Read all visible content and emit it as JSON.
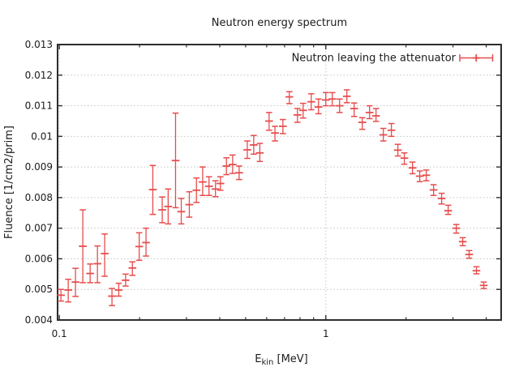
{
  "figure": {
    "background": "#ffffff",
    "colors": {
      "series": "#e74c4c",
      "border": "#2d2d2d",
      "grid": "#c4c4c4",
      "text": "#1b1b1b"
    }
  },
  "chart_data": {
    "type": "scatter",
    "title": "Neutron energy spectrum",
    "xlabel": "E_kin [MeV]",
    "xlabel_parts": {
      "main": "E",
      "sub": "kin",
      "unit": " [MeV]"
    },
    "ylabel": "Fluence [1/cm2/prim]",
    "xscale": "log",
    "yscale": "linear",
    "xlim": [
      0.0985,
      4.55
    ],
    "ylim": [
      0.004,
      0.013
    ],
    "grid": true,
    "legend": {
      "label": "Neutron leaving the attenuator",
      "position": "top-right"
    },
    "yticks": {
      "values": [
        0.004,
        0.005,
        0.006,
        0.007,
        0.008,
        0.009,
        0.01,
        0.011,
        0.012,
        0.013
      ],
      "labels": [
        "0.004",
        "0.005",
        "0.006",
        "0.007",
        "0.008",
        "0.009",
        "0.01",
        "0.011",
        "0.012",
        "0.013"
      ]
    },
    "xticks_major": {
      "values": [
        0.1,
        1
      ],
      "labels": [
        "0.1",
        "1"
      ]
    },
    "xticks_minor": [
      0.2,
      0.3,
      0.4,
      0.5,
      0.6,
      0.7,
      0.8,
      0.9,
      2,
      3,
      4
    ],
    "series": [
      {
        "name": "Neutron leaving the attenuator",
        "marker": "plus-errorbar",
        "color": "#e74c4c",
        "x": [
          0.1014,
          0.108,
          0.115,
          0.1225,
          0.1305,
          0.139,
          0.148,
          0.1576,
          0.1671,
          0.1773,
          0.188,
          0.1994,
          0.2115,
          0.2243,
          0.2433,
          0.2561,
          0.273,
          0.2868,
          0.3075,
          0.327,
          0.3451,
          0.3645,
          0.3855,
          0.4022,
          0.4237,
          0.447,
          0.4729,
          0.5074,
          0.5364,
          0.5654,
          0.6126,
          0.6444,
          0.6902,
          0.7299,
          0.7827,
          0.8221,
          0.8816,
          0.9388,
          1.0,
          1.0576,
          1.1264,
          1.1995,
          1.2776,
          1.3701,
          1.4592,
          1.5434,
          1.6437,
          1.7625,
          1.8641,
          1.9708,
          2.1145,
          2.2521,
          2.3814,
          2.5371,
          2.7208,
          2.8782,
          3.0868,
          3.2637,
          3.4506,
          3.6754,
          3.9147
        ],
        "y": [
          0.00481,
          0.00498,
          0.00524,
          0.00641,
          0.00552,
          0.00584,
          0.00617,
          0.00478,
          0.00498,
          0.0053,
          0.0057,
          0.0064,
          0.00653,
          0.00826,
          0.0076,
          0.00771,
          0.00921,
          0.00754,
          0.00777,
          0.00824,
          0.00851,
          0.00837,
          0.00828,
          0.00846,
          0.00903,
          0.00908,
          0.00881,
          0.00956,
          0.00972,
          0.00946,
          0.0105,
          0.01011,
          0.01033,
          0.01129,
          0.0107,
          0.01085,
          0.01113,
          0.01096,
          0.01119,
          0.01122,
          0.011,
          0.01131,
          0.01091,
          0.01046,
          0.01078,
          0.01067,
          0.01005,
          0.0102,
          0.00955,
          0.00929,
          0.00897,
          0.0087,
          0.00873,
          0.00825,
          0.00797,
          0.00757,
          0.007,
          0.00656,
          0.00614,
          0.00561,
          0.00513
        ],
        "ylo": [
          0.00462,
          0.00459,
          0.00477,
          0.00522,
          0.00522,
          0.00522,
          0.00543,
          0.00447,
          0.00478,
          0.00511,
          0.00546,
          0.00595,
          0.00609,
          0.00745,
          0.00718,
          0.00714,
          0.00767,
          0.00714,
          0.00736,
          0.00784,
          0.00807,
          0.00807,
          0.00803,
          0.00824,
          0.00875,
          0.00879,
          0.00859,
          0.00928,
          0.00942,
          0.00918,
          0.0102,
          0.00985,
          0.01009,
          0.01107,
          0.01046,
          0.0106,
          0.01087,
          0.01074,
          0.011,
          0.011,
          0.01078,
          0.0111,
          0.01065,
          0.01023,
          0.01058,
          0.01049,
          0.00985,
          0.01,
          0.00936,
          0.00909,
          0.00878,
          0.00852,
          0.00855,
          0.00807,
          0.00779,
          0.00745,
          0.00684,
          0.00643,
          0.00602,
          0.00551,
          0.00503
        ],
        "yhi": [
          0.005,
          0.00533,
          0.00569,
          0.0076,
          0.00583,
          0.00642,
          0.00681,
          0.00503,
          0.0052,
          0.0055,
          0.0059,
          0.00685,
          0.007,
          0.00905,
          0.00802,
          0.00828,
          0.01076,
          0.00797,
          0.00819,
          0.00864,
          0.009,
          0.00868,
          0.00855,
          0.00868,
          0.0093,
          0.00939,
          0.00903,
          0.00985,
          0.01003,
          0.00977,
          0.01078,
          0.01033,
          0.01055,
          0.01146,
          0.01091,
          0.01108,
          0.01139,
          0.01122,
          0.01143,
          0.01143,
          0.01122,
          0.01152,
          0.01109,
          0.01061,
          0.011,
          0.01091,
          0.01026,
          0.01042,
          0.00974,
          0.00946,
          0.00916,
          0.00887,
          0.0089,
          0.00842,
          0.00814,
          0.00775,
          0.00712,
          0.00669,
          0.00627,
          0.00574,
          0.00524
        ]
      }
    ]
  }
}
